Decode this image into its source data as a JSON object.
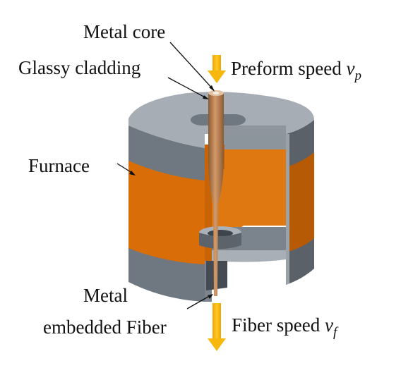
{
  "labels": {
    "metal_core": "Metal core",
    "glassy_cladding": "Glassy cladding",
    "furnace": "Furnace",
    "metal_embedded_fiber_line1": "Metal",
    "metal_embedded_fiber_line2": "embedded Fiber",
    "preform_speed": "Preform speed ",
    "preform_speed_symbol": "v",
    "preform_speed_subscript": "p",
    "fiber_speed": "Fiber speed ",
    "fiber_speed_symbol": "v",
    "fiber_speed_subscript": "f"
  },
  "colors": {
    "furnace_orange": "#d96d08",
    "furnace_orange_dark": "#a85206",
    "gray_top": "#a6adb5",
    "gray_side": "#6f7780",
    "gray_dark": "#4e555d",
    "arrow_yellow": "#f6b80d",
    "fiber_brown": "#b77b4a"
  }
}
